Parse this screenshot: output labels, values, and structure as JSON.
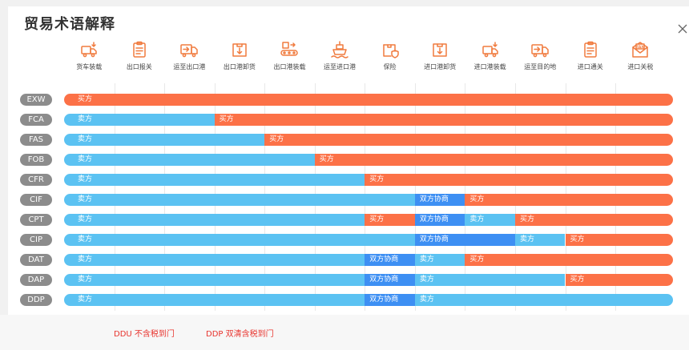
{
  "title": "贸易术语解释",
  "colors": {
    "seller": "#5bc2f2",
    "buyer": "#fc7147",
    "both": "#3d8ff3",
    "icon": "#f07b3f",
    "label_bg": "#8c8c8c"
  },
  "steps": [
    {
      "label": "货车装载",
      "icon": "truck-loading-icon"
    },
    {
      "label": "出口报关",
      "icon": "clipboard-icon"
    },
    {
      "label": "运至出口港",
      "icon": "truck-forward-icon"
    },
    {
      "label": "出口港卸货",
      "icon": "box-unload-icon"
    },
    {
      "label": "出口港装载",
      "icon": "conveyor-icon"
    },
    {
      "label": "运至进口港",
      "icon": "ship-icon"
    },
    {
      "label": "保险",
      "icon": "insurance-box-icon"
    },
    {
      "label": "进口港卸货",
      "icon": "box-unload-icon"
    },
    {
      "label": "进口港装载",
      "icon": "truck-loading-icon"
    },
    {
      "label": "运至目的地",
      "icon": "truck-forward-icon"
    },
    {
      "label": "进口通关",
      "icon": "clipboard-icon"
    },
    {
      "label": "进口关税",
      "icon": "tax-envelope-icon"
    }
  ],
  "terms": [
    {
      "code": "EXW",
      "segments": [
        {
          "label": "买方",
          "type": "buyer",
          "span": 12
        }
      ]
    },
    {
      "code": "FCA",
      "segments": [
        {
          "label": "卖方",
          "type": "seller",
          "span": 3
        },
        {
          "label": "买方",
          "type": "buyer",
          "span": 9
        }
      ]
    },
    {
      "code": "FAS",
      "segments": [
        {
          "label": "卖方",
          "type": "seller",
          "span": 4
        },
        {
          "label": "买方",
          "type": "buyer",
          "span": 8
        }
      ]
    },
    {
      "code": "FOB",
      "segments": [
        {
          "label": "卖方",
          "type": "seller",
          "span": 5
        },
        {
          "label": "买方",
          "type": "buyer",
          "span": 7
        }
      ]
    },
    {
      "code": "CFR",
      "segments": [
        {
          "label": "卖方",
          "type": "seller",
          "span": 6
        },
        {
          "label": "买方",
          "type": "buyer",
          "span": 6
        }
      ]
    },
    {
      "code": "CIF",
      "segments": [
        {
          "label": "卖方",
          "type": "seller",
          "span": 7
        },
        {
          "label": "双方协商",
          "type": "both",
          "span": 1
        },
        {
          "label": "买方",
          "type": "buyer",
          "span": 4
        }
      ]
    },
    {
      "code": "CPT",
      "segments": [
        {
          "label": "卖方",
          "type": "seller",
          "span": 6
        },
        {
          "label": "买方",
          "type": "buyer",
          "span": 1
        },
        {
          "label": "双方协商",
          "type": "both",
          "span": 1
        },
        {
          "label": "卖方",
          "type": "seller",
          "span": 1
        },
        {
          "label": "买方",
          "type": "buyer",
          "span": 3
        }
      ]
    },
    {
      "code": "CIP",
      "segments": [
        {
          "label": "卖方",
          "type": "seller",
          "span": 7
        },
        {
          "label": "双方协商",
          "type": "both",
          "span": 2
        },
        {
          "label": "卖方",
          "type": "seller",
          "span": 1
        },
        {
          "label": "买方",
          "type": "buyer",
          "span": 2
        }
      ]
    },
    {
      "code": "DAT",
      "segments": [
        {
          "label": "卖方",
          "type": "seller",
          "span": 6
        },
        {
          "label": "双方协商",
          "type": "both",
          "span": 1
        },
        {
          "label": "卖方",
          "type": "seller",
          "span": 1
        },
        {
          "label": "买方",
          "type": "buyer",
          "span": 4
        }
      ]
    },
    {
      "code": "DAP",
      "segments": [
        {
          "label": "卖方",
          "type": "seller",
          "span": 6
        },
        {
          "label": "双方协商",
          "type": "both",
          "span": 1
        },
        {
          "label": "卖方",
          "type": "seller",
          "span": 3
        },
        {
          "label": "买方",
          "type": "buyer",
          "span": 2
        }
      ]
    },
    {
      "code": "DDP",
      "segments": [
        {
          "label": "卖方",
          "type": "seller",
          "span": 6
        },
        {
          "label": "双方协商",
          "type": "both",
          "span": 1
        },
        {
          "label": "卖方",
          "type": "seller",
          "span": 5
        }
      ]
    }
  ],
  "notes": [
    "DDU  不含税到门",
    "DDP 双清含税到门"
  ]
}
